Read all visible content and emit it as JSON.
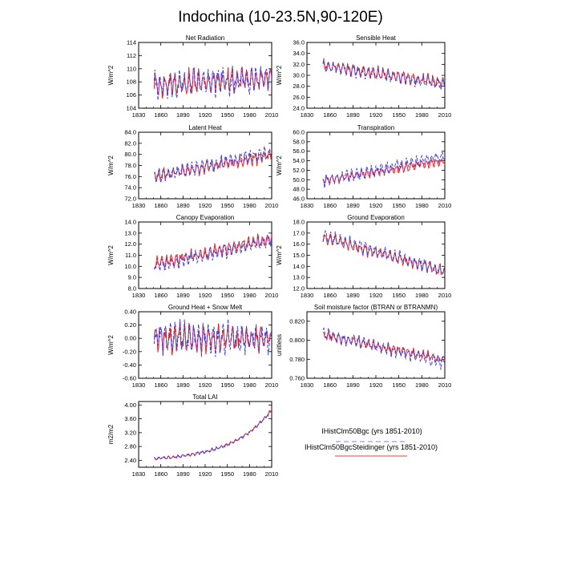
{
  "title": "Indochina (10-23.5N,90-120E)",
  "colors": {
    "series1": "#4040dd",
    "series2": "#ee2222",
    "axis": "#000000"
  },
  "legend": {
    "entries": [
      {
        "name": "IHistClm50Bgc (yrs 1851-2010)",
        "color": "#9999ee",
        "dash": "dashed"
      },
      {
        "name": "IHistClm50BgcSteidinger (yrs 1851-2010)",
        "color": "#ee6666",
        "dash": "solid"
      }
    ]
  },
  "chart_data": [
    {
      "type": "line",
      "title": "Net Radiation",
      "ylabel": "W/m^2",
      "xlim": [
        1830,
        2010
      ],
      "xticks": [
        1830,
        1860,
        1890,
        1920,
        1950,
        1980,
        2010
      ],
      "ylim": [
        104,
        114
      ],
      "yticks": [
        "104",
        "106",
        "108",
        "110",
        "112",
        "114"
      ],
      "x": [
        1851,
        2010
      ],
      "series": [
        {
          "mean_trend": [
            107.5,
            108.6
          ],
          "amplitude": 2.8
        },
        {
          "mean_trend": [
            107.5,
            108.6
          ],
          "amplitude": 2.6
        }
      ]
    },
    {
      "type": "line",
      "title": "Sensible Heat",
      "ylabel": "W/m^2",
      "xlim": [
        1830,
        2010
      ],
      "xticks": [
        1830,
        1860,
        1890,
        1920,
        1950,
        1980,
        2010
      ],
      "ylim": [
        24,
        36
      ],
      "yticks": [
        "24.0",
        "26.0",
        "28.0",
        "30.0",
        "32.0",
        "34.0",
        "36.0"
      ],
      "x": [
        1851,
        2010
      ],
      "series": [
        {
          "mean_trend": [
            31.8,
            28.3
          ],
          "amplitude": 1.6
        },
        {
          "mean_trend": [
            31.8,
            28.6
          ],
          "amplitude": 1.5
        }
      ]
    },
    {
      "type": "line",
      "title": "Latent Heat",
      "ylabel": "W/m^2",
      "xlim": [
        1830,
        2010
      ],
      "xticks": [
        1830,
        1860,
        1890,
        1920,
        1950,
        1980,
        2010
      ],
      "ylim": [
        72,
        84
      ],
      "yticks": [
        "72.0",
        "74.0",
        "76.0",
        "78.0",
        "80.0",
        "82.0",
        "84.0"
      ],
      "x": [
        1851,
        2010
      ],
      "series": [
        {
          "mean_trend": [
            76.0,
            80.5
          ],
          "amplitude": 1.7
        },
        {
          "mean_trend": [
            76.0,
            79.8
          ],
          "amplitude": 1.5
        }
      ]
    },
    {
      "type": "line",
      "title": "Transpiration",
      "ylabel": "W/m^2",
      "xlim": [
        1830,
        2010
      ],
      "xticks": [
        1830,
        1860,
        1890,
        1920,
        1950,
        1980,
        2010
      ],
      "ylim": [
        46,
        60
      ],
      "yticks": [
        "46.0",
        "48.0",
        "50.0",
        "52.0",
        "54.0",
        "56.0",
        "58.0",
        "60.0"
      ],
      "x": [
        1851,
        2010
      ],
      "series": [
        {
          "mean_trend": [
            49.8,
            55.0
          ],
          "amplitude": 1.8
        },
        {
          "mean_trend": [
            49.8,
            54.0
          ],
          "amplitude": 1.4
        }
      ]
    },
    {
      "type": "line",
      "title": "Canopy Evaporation",
      "ylabel": "W/m^2",
      "xlim": [
        1830,
        2010
      ],
      "xticks": [
        1830,
        1860,
        1890,
        1920,
        1950,
        1980,
        2010
      ],
      "ylim": [
        8,
        14
      ],
      "yticks": [
        "8.0",
        "9.0",
        "10.0",
        "11.0",
        "12.0",
        "13.0",
        "14.0"
      ],
      "x": [
        1851,
        2010
      ],
      "series": [
        {
          "mean_trend": [
            10.0,
            12.3
          ],
          "amplitude": 0.8
        },
        {
          "mean_trend": [
            10.2,
            12.5
          ],
          "amplitude": 0.8
        }
      ]
    },
    {
      "type": "line",
      "title": "Ground Evaporation",
      "ylabel": "W/m^2",
      "xlim": [
        1830,
        2010
      ],
      "xticks": [
        1830,
        1860,
        1890,
        1920,
        1950,
        1980,
        2010
      ],
      "ylim": [
        12,
        18
      ],
      "yticks": [
        "12.0",
        "13.0",
        "14.0",
        "15.0",
        "16.0",
        "17.0",
        "18.0"
      ],
      "x": [
        1851,
        2010
      ],
      "series": [
        {
          "mean_trend": [
            16.8,
            13.6
          ],
          "amplitude": 0.8
        },
        {
          "mean_trend": [
            16.6,
            13.5
          ],
          "amplitude": 0.7
        }
      ]
    },
    {
      "type": "line",
      "title": "Ground Heat + Snow Melt",
      "ylabel": "W/m^2",
      "xlim": [
        1830,
        2010
      ],
      "xticks": [
        1830,
        1860,
        1890,
        1920,
        1950,
        1980,
        2010
      ],
      "ylim": [
        -0.6,
        0.4
      ],
      "yticks": [
        "-0.60",
        "-0.40",
        "-0.20",
        "0.00",
        "0.20",
        "0.40"
      ],
      "x": [
        1851,
        2010
      ],
      "series": [
        {
          "mean_trend": [
            0.0,
            0.0
          ],
          "amplitude": 0.32
        },
        {
          "mean_trend": [
            0.0,
            0.0
          ],
          "amplitude": 0.3
        }
      ]
    },
    {
      "type": "line",
      "title": "Soil moisture factor (BTRAN or BTRANMN)",
      "ylabel": "unitless",
      "xlim": [
        1830,
        2010
      ],
      "xticks": [
        1830,
        1860,
        1890,
        1920,
        1950,
        1980,
        2010
      ],
      "ylim": [
        0.76,
        0.83
      ],
      "yticks": [
        "0.760",
        "0.780",
        "0.800",
        "0.820"
      ],
      "x": [
        1851,
        2010
      ],
      "series": [
        {
          "mean_trend": [
            0.808,
            0.776
          ],
          "amplitude": 0.009
        },
        {
          "mean_trend": [
            0.805,
            0.78
          ],
          "amplitude": 0.007
        }
      ]
    },
    {
      "type": "line",
      "title": "Total LAI",
      "ylabel": "m2/m2",
      "xlim": [
        1830,
        2010
      ],
      "xticks": [
        1830,
        1860,
        1890,
        1920,
        1950,
        1980,
        2010
      ],
      "ylim": [
        2.2,
        4.1
      ],
      "yticks": [
        "2.40",
        "2.80",
        "3.20",
        "3.60",
        "4.00"
      ],
      "x": [
        1851,
        2010
      ],
      "series": [
        {
          "mean_trend": [
            2.45,
            3.85
          ],
          "amplitude": 0.07,
          "shape": "exp"
        },
        {
          "mean_trend": [
            2.45,
            3.87
          ],
          "amplitude": 0.06,
          "shape": "exp"
        }
      ]
    }
  ]
}
